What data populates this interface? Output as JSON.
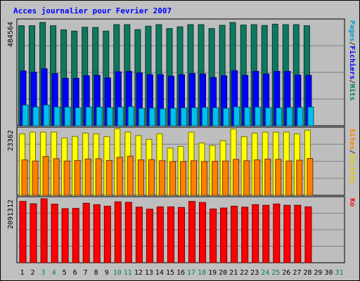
{
  "chart_data": {
    "type": "bar",
    "title": "Acces journalier pour Fevrier 2007",
    "grid": true,
    "days": [
      "1",
      "2",
      "3",
      "4",
      "5",
      "6",
      "7",
      "8",
      "9",
      "10",
      "11",
      "12",
      "13",
      "14",
      "15",
      "16",
      "17",
      "18",
      "19",
      "20",
      "21",
      "22",
      "23",
      "24",
      "25",
      "26",
      "27",
      "28",
      "29",
      "30",
      "31"
    ],
    "weekend_days": [
      "3",
      "4",
      "10",
      "11",
      "17",
      "18",
      "24",
      "25",
      "31"
    ],
    "panels": [
      {
        "name": "traffic",
        "ymax_label": "484564",
        "ymax": 484564,
        "right_labels": [
          {
            "text": "Pages",
            "color": "#00a0d0"
          },
          {
            "text": "/",
            "color": "#333333"
          },
          {
            "text": "Fichiers",
            "color": "#0000ff"
          },
          {
            "text": "/",
            "color": "#333333"
          },
          {
            "text": "Hits",
            "color": "#008060"
          }
        ],
        "series": [
          {
            "name": "Hits",
            "color": "#107860",
            "values": [
              460000,
              460000,
              475000,
              460000,
              441000,
              435000,
              453000,
              452000,
              435000,
              465000,
              465000,
              442000,
              458000,
              465000,
              447000,
              455000,
              465000,
              465000,
              447000,
              462000,
              475000,
              463000,
              465000,
              461000,
              467000,
              465000,
              465000,
              460000,
              0,
              0,
              0
            ]
          },
          {
            "name": "Fichiers",
            "color": "#0000ff",
            "values": [
              252000,
              246000,
              262000,
              240000,
              218000,
              218000,
              230000,
              232000,
              220000,
              248000,
              250000,
              243000,
              235000,
              235000,
              228000,
              235000,
              240000,
              238000,
              222000,
              230000,
              253000,
              232000,
              250000,
              238000,
              250000,
              250000,
              233000,
              232000,
              0,
              0,
              0
            ]
          },
          {
            "name": "Pages",
            "color": "#00c0f0",
            "values": [
              95000,
              86000,
              95000,
              86000,
              86000,
              83000,
              86000,
              86000,
              84000,
              86000,
              88000,
              80000,
              81000,
              78000,
              80000,
              82000,
              83000,
              84000,
              83000,
              80000,
              87000,
              84000,
              86000,
              83000,
              82000,
              84000,
              84000,
              86000,
              0,
              0,
              0
            ]
          }
        ]
      },
      {
        "name": "visits",
        "ymax_label": "23362",
        "ymax": 23362,
        "right_labels": [
          {
            "text": "Sites",
            "color": "#ff8000"
          },
          {
            "text": "/",
            "color": "#333333"
          },
          {
            "text": "Visites",
            "color": "#e0d000"
          }
        ],
        "series": [
          {
            "name": "Visites",
            "color": "#ffff00",
            "values": [
              21500,
              22100,
              22100,
              22100,
              20100,
              20600,
              21800,
              21500,
              20500,
              23300,
              22100,
              20900,
              19600,
              21500,
              16500,
              17100,
              22100,
              18300,
              17400,
              19100,
              23200,
              20500,
              21800,
              22100,
              22100,
              22100,
              21500,
              22800,
              0,
              0,
              0
            ]
          },
          {
            "name": "Sites",
            "color": "#ff8000",
            "values": [
              12400,
              12000,
              13600,
              12800,
              12000,
              12200,
              12700,
              12800,
              12200,
              13300,
              13700,
              12400,
              12500,
              12100,
              11800,
              11800,
              12100,
              11800,
              11900,
              12000,
              12600,
              12100,
              12400,
              12700,
              12600,
              12000,
              12300,
              12900,
              0,
              0,
              0
            ]
          }
        ]
      },
      {
        "name": "bandwidth",
        "ymax_label": "2091312",
        "ymax": 2091312,
        "right_labels": [
          {
            "text": "Ko",
            "color": "#ff0000"
          }
        ],
        "series": [
          {
            "name": "Ko",
            "color": "#ff0000",
            "values": [
              1985000,
              1910000,
              2070000,
              1895000,
              1750000,
              1760000,
              1925000,
              1880000,
              1830000,
              1970000,
              1955000,
              1800000,
              1735000,
              1810000,
              1810000,
              1790000,
              1985000,
              1950000,
              1740000,
              1770000,
              1830000,
              1800000,
              1880000,
              1860000,
              1900000,
              1860000,
              1860000,
              1810000,
              0,
              0,
              0
            ]
          }
        ]
      }
    ]
  }
}
